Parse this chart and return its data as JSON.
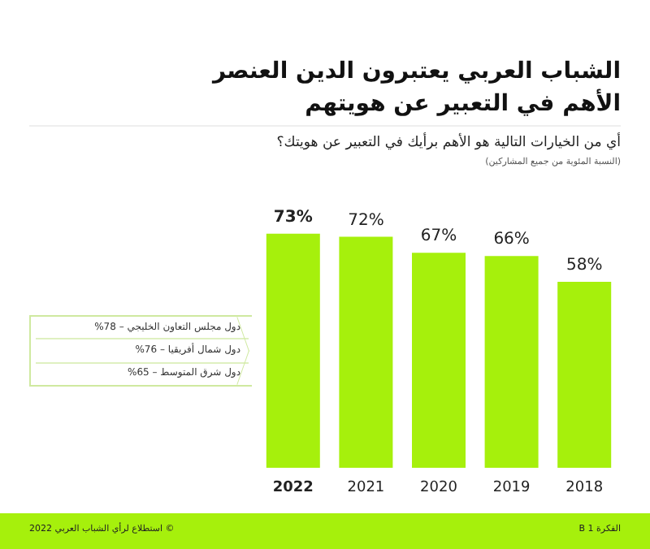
{
  "chart_data": {
    "type": "bar",
    "title": "الشباب العربي يعتبرون الدين العنصر الأهم في التعبير عن هويتهم",
    "subtitle": "أي من الخيارات التالية هو الأهم برأيك في التعبير عن هويتك؟",
    "annotations": [
      "(النسبة المئوية من جميع المشاركين)",
      "دول مجلس التعاون الخليجي – 78%",
      "دول شمال أفريقيا – 76%",
      "دول شرق المتوسط – 65%",
      "© استطلاع لرأي الشباب العربي 2022",
      "الفكرة 1 B"
    ],
    "categories": [
      "2022",
      "2021",
      "2020",
      "2019",
      "2018"
    ],
    "values": [
      73,
      72,
      67,
      66,
      58
    ],
    "value_labels": [
      "73%",
      "72%",
      "67%",
      "66%",
      "58%"
    ],
    "color": "#a6f00c"
  }
}
